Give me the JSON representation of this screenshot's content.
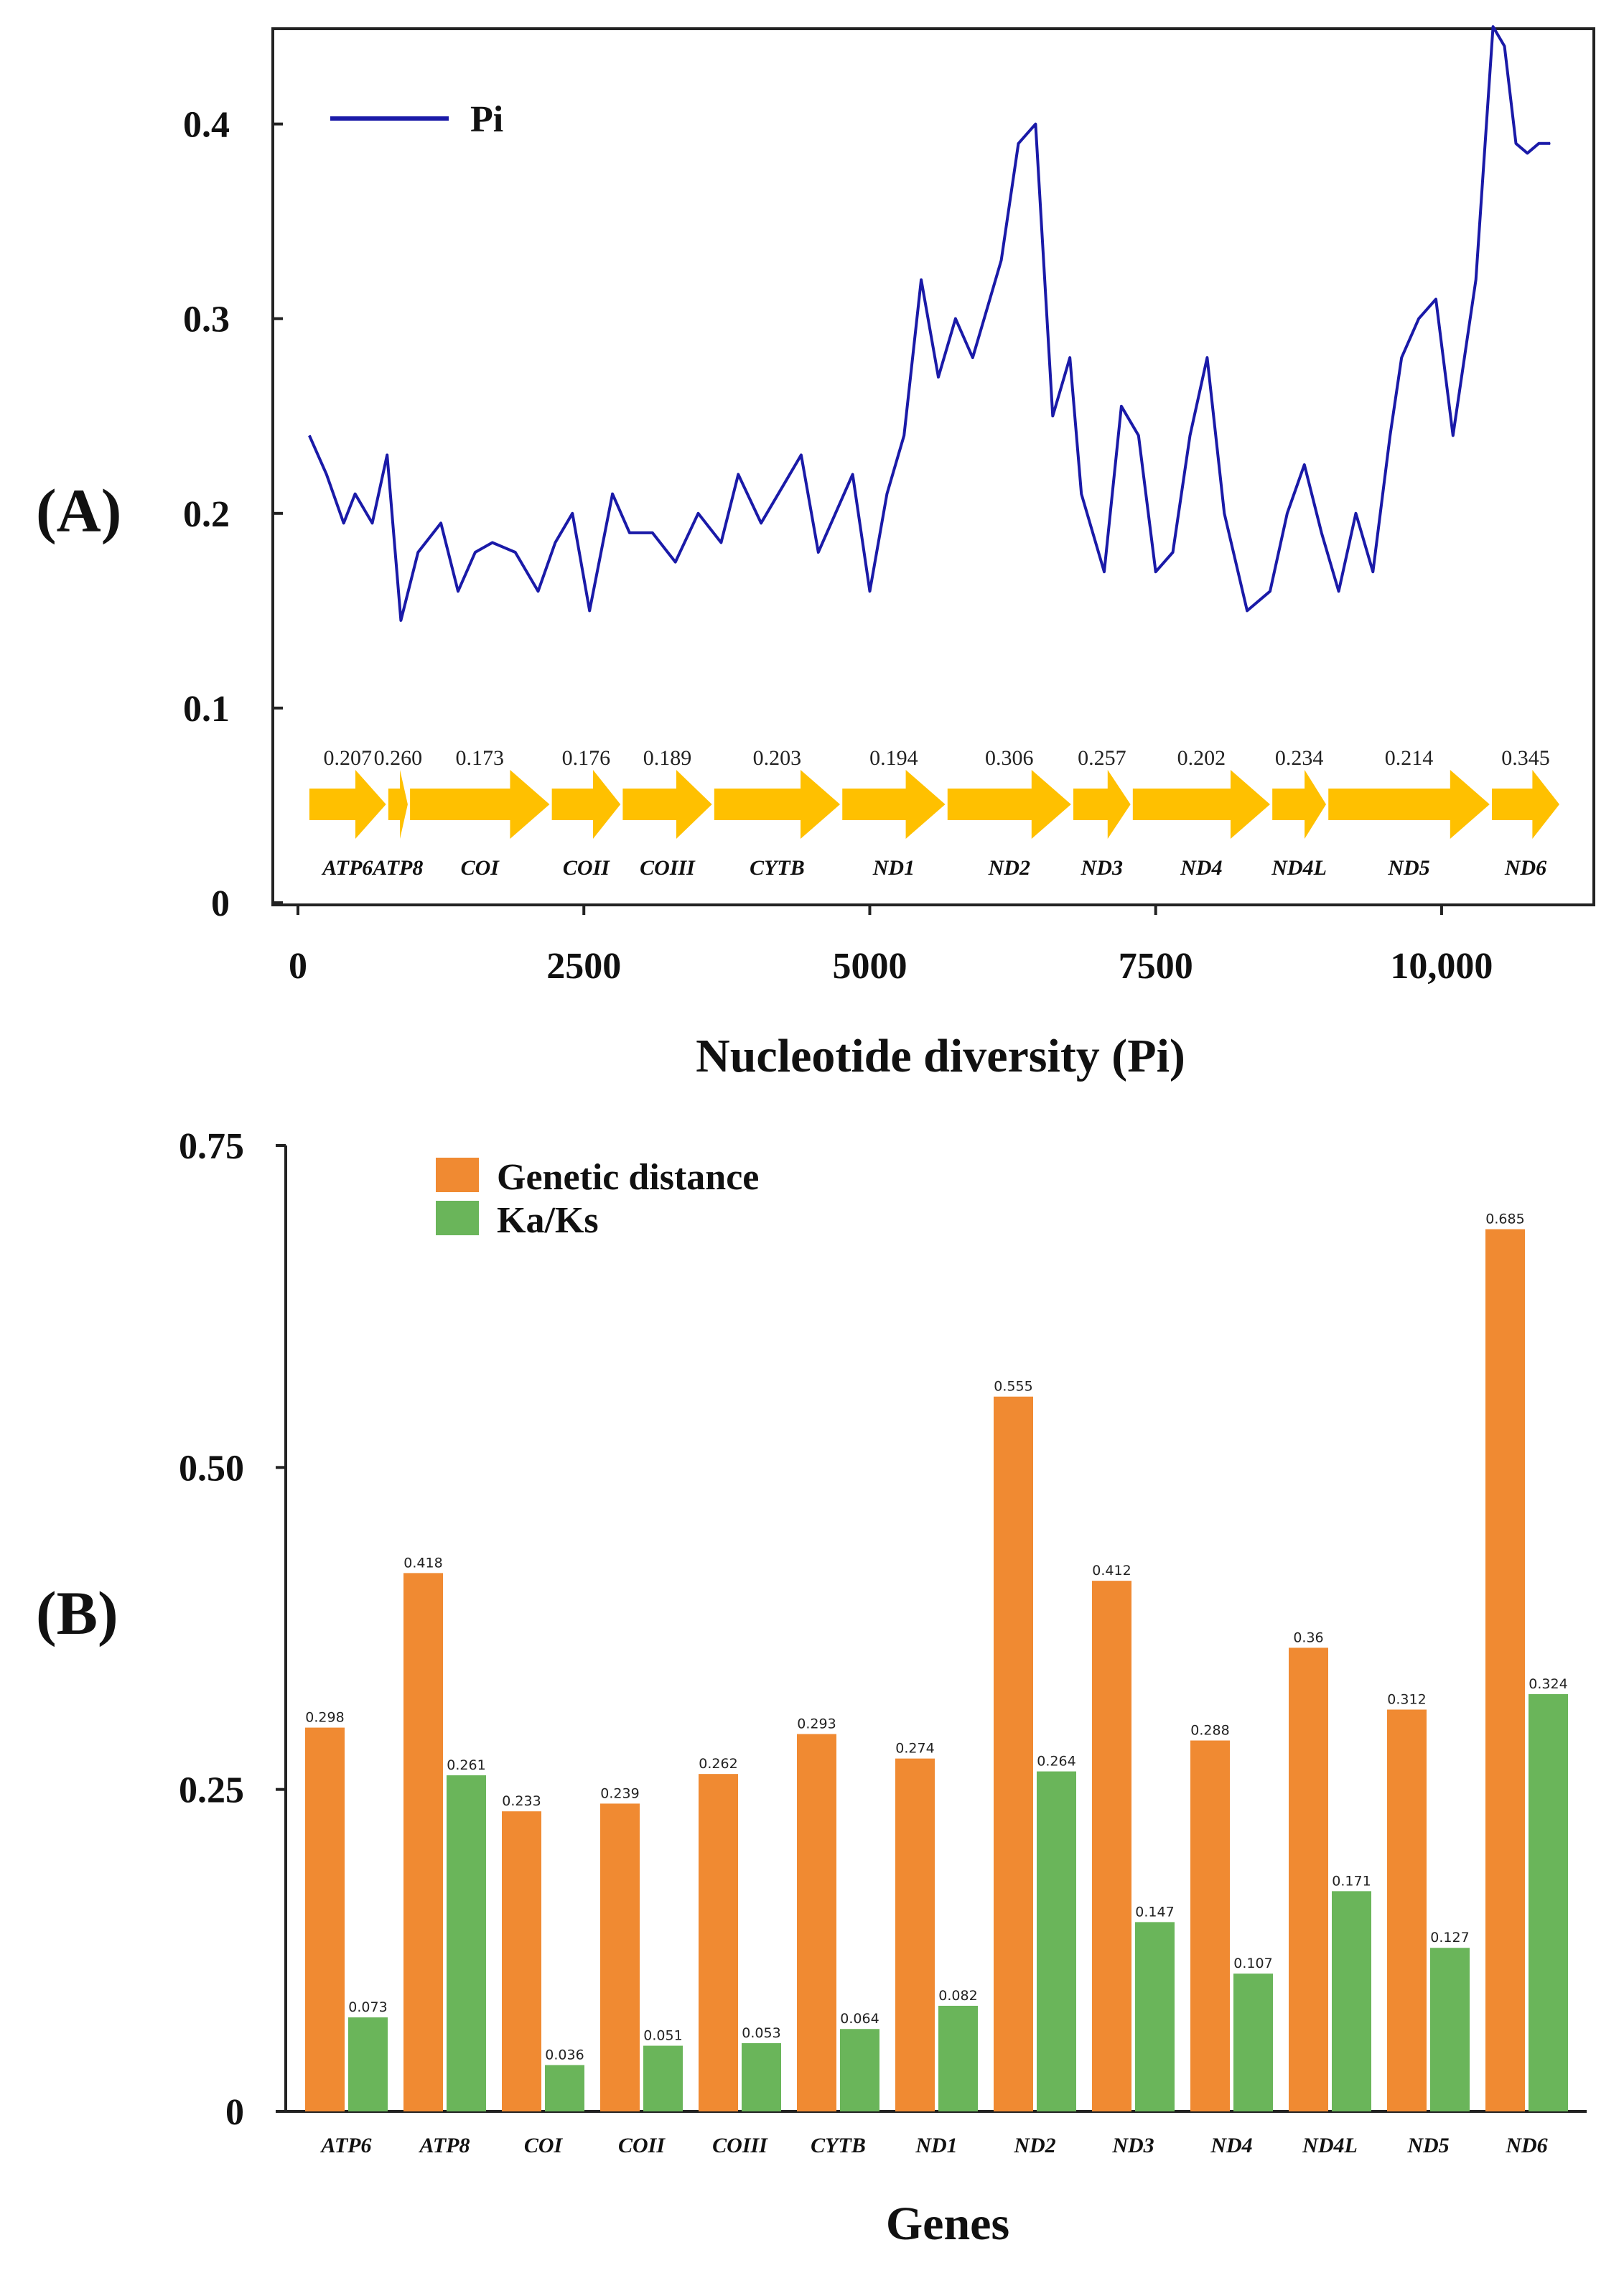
{
  "panels": {
    "a_label": "(A)",
    "b_label": "(B)"
  },
  "colors": {
    "pi_line": "#1a1aa8",
    "arrow": "#ffc000",
    "genetic_distance": "#f08a32",
    "ka_ks": "#6ab55a"
  },
  "chart_data": [
    {
      "type": "line",
      "panel": "A",
      "title": "",
      "xlabel": "Nucleotide diversity (Pi)",
      "ylabel": "",
      "xlim": [
        0,
        11300
      ],
      "ylim": [
        0,
        0.46
      ],
      "x_ticks": [
        0,
        2500,
        5000,
        7500,
        10000
      ],
      "x_tick_labels": [
        "0",
        "2500",
        "5000",
        "7500",
        "10,000"
      ],
      "y_ticks": [
        0,
        0.1,
        0.2,
        0.3,
        0.4
      ],
      "y_tick_labels": [
        "0",
        "0.1",
        "0.2",
        "0.3",
        "0.4"
      ],
      "legend": [
        "Pi"
      ],
      "legend_position": "top-left",
      "series": [
        {
          "name": "Pi",
          "x": [
            100,
            250,
            400,
            500,
            650,
            780,
            900,
            1050,
            1250,
            1400,
            1550,
            1700,
            1900,
            2100,
            2250,
            2400,
            2550,
            2750,
            2900,
            3100,
            3300,
            3500,
            3700,
            3850,
            4050,
            4250,
            4400,
            4550,
            4700,
            4850,
            5000,
            5150,
            5300,
            5450,
            5600,
            5750,
            5900,
            6000,
            6150,
            6300,
            6450,
            6600,
            6750,
            6850,
            6950,
            7050,
            7200,
            7350,
            7500,
            7650,
            7800,
            7950,
            8100,
            8300,
            8500,
            8650,
            8800,
            8950,
            9100,
            9250,
            9400,
            9550,
            9650,
            9800,
            9950,
            10100,
            10300,
            10450,
            10550,
            10650,
            10750,
            10850,
            10950
          ],
          "values": [
            0.24,
            0.22,
            0.195,
            0.21,
            0.195,
            0.23,
            0.145,
            0.18,
            0.195,
            0.16,
            0.18,
            0.185,
            0.18,
            0.16,
            0.185,
            0.2,
            0.15,
            0.21,
            0.19,
            0.19,
            0.175,
            0.2,
            0.185,
            0.22,
            0.195,
            0.215,
            0.23,
            0.18,
            0.2,
            0.22,
            0.16,
            0.21,
            0.24,
            0.32,
            0.27,
            0.3,
            0.28,
            0.3,
            0.33,
            0.39,
            0.4,
            0.25,
            0.28,
            0.21,
            0.19,
            0.17,
            0.255,
            0.24,
            0.17,
            0.18,
            0.24,
            0.28,
            0.2,
            0.15,
            0.16,
            0.2,
            0.225,
            0.19,
            0.16,
            0.2,
            0.17,
            0.24,
            0.28,
            0.3,
            0.31,
            0.24,
            0.32,
            0.45,
            0.44,
            0.39,
            0.385,
            0.39,
            0.39
          ]
        }
      ],
      "gene_segments": [
        {
          "gene": "ATP6",
          "start": 100,
          "end": 770,
          "pi": "0.207"
        },
        {
          "gene": "ATP8",
          "start": 790,
          "end": 960,
          "pi": "0.260"
        },
        {
          "gene": "COI",
          "start": 980,
          "end": 2200,
          "pi": "0.173"
        },
        {
          "gene": "COII",
          "start": 2220,
          "end": 2820,
          "pi": "0.176"
        },
        {
          "gene": "COIII",
          "start": 2840,
          "end": 3620,
          "pi": "0.189"
        },
        {
          "gene": "CYTB",
          "start": 3640,
          "end": 4740,
          "pi": "0.203"
        },
        {
          "gene": "ND1",
          "start": 4760,
          "end": 5660,
          "pi": "0.194"
        },
        {
          "gene": "ND2",
          "start": 5680,
          "end": 6760,
          "pi": "0.306"
        },
        {
          "gene": "ND3",
          "start": 6780,
          "end": 7280,
          "pi": "0.257"
        },
        {
          "gene": "ND4",
          "start": 7300,
          "end": 8500,
          "pi": "0.202"
        },
        {
          "gene": "ND4L",
          "start": 8520,
          "end": 8990,
          "pi": "0.234"
        },
        {
          "gene": "ND5",
          "start": 9010,
          "end": 10420,
          "pi": "0.214"
        },
        {
          "gene": "ND6",
          "start": 10440,
          "end": 11030,
          "pi": "0.345"
        }
      ]
    },
    {
      "type": "bar",
      "panel": "B",
      "title": "",
      "xlabel": "Genes",
      "ylabel": "",
      "ylim": [
        0,
        0.75
      ],
      "y_ticks": [
        0,
        0.25,
        0.5,
        0.75
      ],
      "y_tick_labels": [
        "0",
        "0.25",
        "0.50",
        "0.75"
      ],
      "legend_position": "top-left",
      "categories": [
        "ATP6",
        "ATP8",
        "COI",
        "COII",
        "COIII",
        "CYTB",
        "ND1",
        "ND2",
        "ND3",
        "ND4",
        "ND4L",
        "ND5",
        "ND6"
      ],
      "series": [
        {
          "name": "Genetic distance",
          "values": [
            0.298,
            0.418,
            0.233,
            0.239,
            0.262,
            0.293,
            0.274,
            0.555,
            0.412,
            0.288,
            0.36,
            0.312,
            0.685
          ],
          "labels": [
            "0.298",
            "0.418",
            "0.233",
            "0.239",
            "0.262",
            "0.293",
            "0.274",
            "0.555",
            "0.412",
            "0.288",
            "0.36",
            "0.312",
            "0.685"
          ]
        },
        {
          "name": "Ka/Ks",
          "values": [
            0.073,
            0.261,
            0.036,
            0.051,
            0.053,
            0.064,
            0.082,
            0.264,
            0.147,
            0.107,
            0.171,
            0.127,
            0.324
          ],
          "labels": [
            "0.073",
            "0.261",
            "0.036",
            "0.051",
            "0.053",
            "0.064",
            "0.082",
            "0.264",
            "0.147",
            "0.107",
            "0.171",
            "0.127",
            "0.324"
          ]
        }
      ]
    }
  ]
}
